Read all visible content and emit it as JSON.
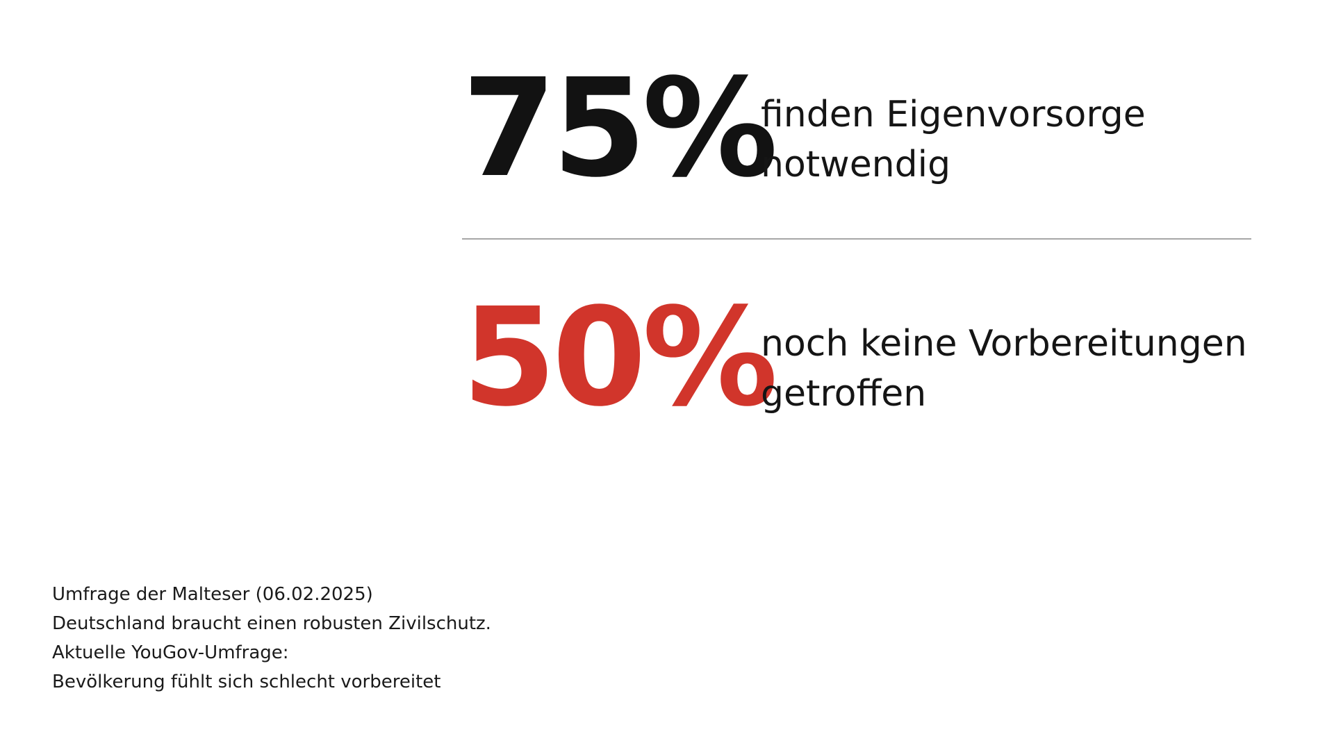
{
  "stats": [
    {
      "value": "75%",
      "text_lines": [
        "finden Eigenvorsorge",
        "notwendig"
      ],
      "color": "#121212"
    },
    {
      "value": "50%",
      "text_lines": [
        "noch keine Vorbereitungen",
        "getroffen"
      ],
      "color": "#d1352b"
    }
  ],
  "footer": {
    "lines": [
      "Umfrage der Malteser (06.02.2025)",
      "Deutschland braucht einen robusten Zivilschutz.",
      "Aktuelle YouGov-Umfrage:",
      "Bevölkerung fühlt sich schlecht vorbereitet"
    ]
  },
  "colors": {
    "background": "#ffffff",
    "text": "#151515",
    "accent": "#d1352b",
    "divider": "#a6a6a6"
  }
}
